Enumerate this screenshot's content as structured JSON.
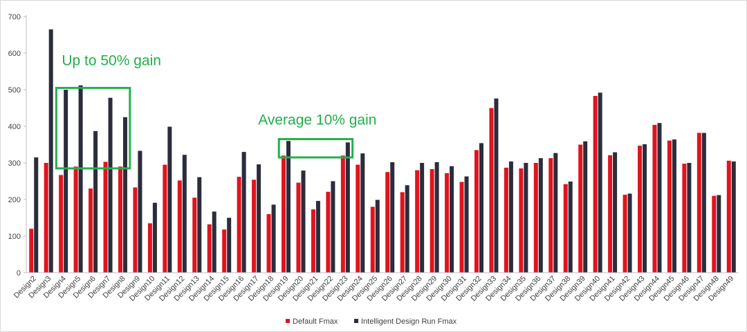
{
  "chart_data": {
    "type": "bar",
    "title": "",
    "xlabel": "",
    "ylabel": "",
    "ylim": [
      0,
      700
    ],
    "yticks": [
      0,
      100,
      200,
      300,
      400,
      500,
      600,
      700
    ],
    "grid": false,
    "legend_position": "bottom",
    "categories": [
      "Design2",
      "Design3",
      "Design4",
      "Design5",
      "Design6",
      "Design7",
      "Design8",
      "Design9",
      "Design10",
      "Design11",
      "Design12",
      "Design13",
      "Design14",
      "Design15",
      "Design16",
      "Design17",
      "Design18",
      "Design19",
      "Design20",
      "Design21",
      "Design22",
      "Design23",
      "Design24",
      "Design25",
      "Design26",
      "Design27",
      "Design28",
      "Design29",
      "Design30",
      "Design31",
      "Design32",
      "Design33",
      "Design34",
      "Design35",
      "Design36",
      "Design37",
      "Design38",
      "Design39",
      "Design40",
      "Design41",
      "Design42",
      "Design43",
      "Design44",
      "Design45",
      "Design46",
      "Design47",
      "Design48",
      "Design49"
    ],
    "series": [
      {
        "name": "Default Fmax",
        "color": "#e0141e",
        "values": [
          120,
          300,
          267,
          290,
          230,
          303,
          290,
          233,
          135,
          295,
          252,
          205,
          132,
          118,
          262,
          254,
          160,
          320,
          246,
          173,
          221,
          320,
          295,
          180,
          275,
          220,
          280,
          283,
          272,
          248,
          335,
          450,
          287,
          285,
          300,
          313,
          242,
          350,
          483,
          321,
          213,
          347,
          404,
          361,
          298,
          382,
          210,
          306
        ]
      },
      {
        "name": "Intelligent Design Run Fmax",
        "color": "#2b2d3c",
        "values": [
          315,
          665,
          500,
          512,
          387,
          478,
          425,
          333,
          191,
          399,
          322,
          261,
          167,
          150,
          330,
          296,
          186,
          360,
          279,
          196,
          250,
          356,
          326,
          199,
          302,
          239,
          300,
          302,
          291,
          263,
          354,
          476,
          304,
          300,
          313,
          327,
          249,
          359,
          492,
          329,
          216,
          351,
          409,
          364,
          300,
          382,
          212,
          304
        ]
      }
    ],
    "annotations": [
      {
        "text": "Up to 50% gain",
        "x_from": "Design4",
        "x_to": "Design8",
        "y_from": 285,
        "y_to": 505
      },
      {
        "text": "Average 10% gain",
        "x_from": "Design19",
        "x_to": "Design23",
        "y_from": 315,
        "y_to": 365
      }
    ]
  }
}
